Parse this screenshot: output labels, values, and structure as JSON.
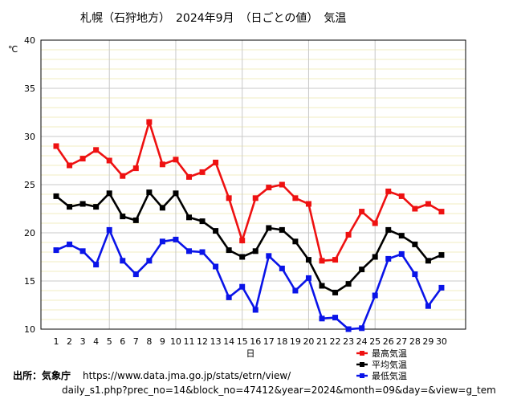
{
  "chart_data": {
    "type": "line",
    "title": "札幌（石狩地方）　2024年9月　（日ごとの値）　気温",
    "xlabel": "日",
    "ylabel": "℃",
    "ylim": [
      10,
      40
    ],
    "yticks": [
      10,
      15,
      20,
      25,
      30,
      35,
      40
    ],
    "categories": [
      "1",
      "2",
      "3",
      "4",
      "5",
      "6",
      "7",
      "8",
      "9",
      "10",
      "11",
      "12",
      "13",
      "14",
      "15",
      "16",
      "17",
      "18",
      "19",
      "20",
      "21",
      "22",
      "23",
      "24",
      "25",
      "26",
      "27",
      "28",
      "29",
      "30"
    ],
    "grid": true,
    "legend_position": "bottom-right",
    "series": [
      {
        "name": "最高気温",
        "color": "#ee1111",
        "values": [
          29.0,
          27.0,
          27.7,
          28.6,
          27.5,
          25.9,
          26.7,
          31.5,
          27.1,
          27.6,
          25.8,
          26.3,
          27.3,
          23.6,
          19.2,
          23.6,
          24.7,
          25.0,
          23.6,
          23.0,
          17.1,
          17.2,
          19.8,
          22.2,
          21.0,
          24.3,
          23.8,
          22.5,
          23.0,
          22.2
        ]
      },
      {
        "name": "平均気温",
        "color": "#000000",
        "values": [
          23.8,
          22.7,
          23.0,
          22.7,
          24.1,
          21.7,
          21.3,
          24.2,
          22.6,
          24.1,
          21.6,
          21.2,
          20.2,
          18.2,
          17.5,
          18.1,
          20.5,
          20.3,
          19.1,
          17.2,
          14.5,
          13.8,
          14.7,
          16.2,
          17.5,
          20.3,
          19.7,
          18.8,
          17.1,
          17.7
        ]
      },
      {
        "name": "最低気温",
        "color": "#0a14e8",
        "values": [
          18.2,
          18.8,
          18.1,
          16.7,
          20.3,
          17.1,
          15.7,
          17.1,
          19.1,
          19.3,
          18.1,
          18.0,
          16.5,
          13.3,
          14.4,
          12.0,
          17.6,
          16.3,
          14.0,
          15.3,
          11.1,
          11.2,
          10.0,
          10.1,
          13.5,
          17.3,
          17.8,
          15.7,
          12.4,
          14.3
        ]
      }
    ]
  },
  "source": {
    "label": "出所：気象庁",
    "url_line1": "https://www.data.jma.go.jp/stats/etrn/view/",
    "url_line2": "daily_s1.php?prec_no=14&block_no=47412&year=2024&month=09&day=&view=g_tem"
  }
}
